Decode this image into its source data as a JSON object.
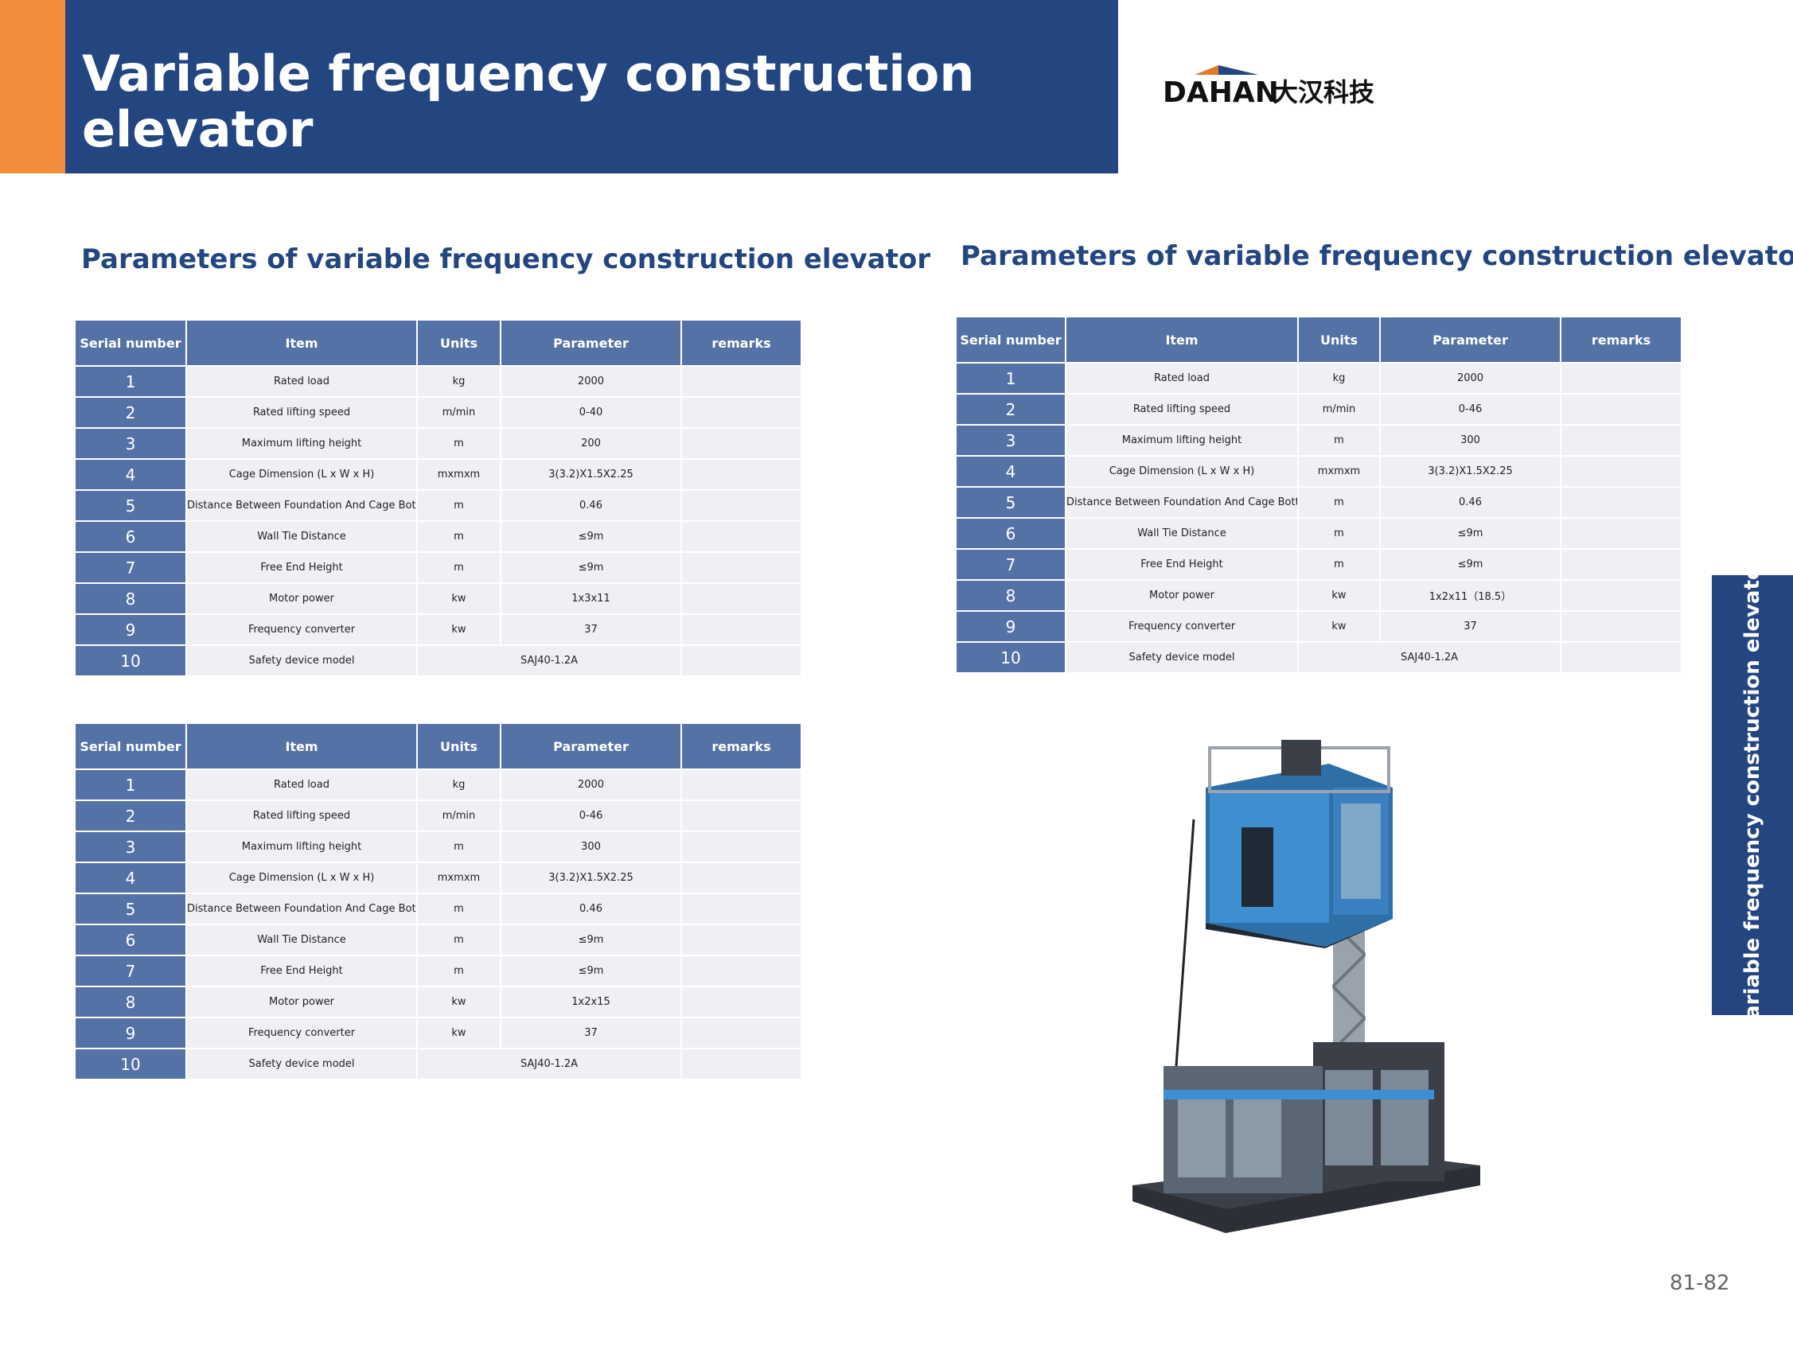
{
  "header": {
    "title": "Variable frequency construction elevator"
  },
  "logo": {
    "brand": "DAHAN",
    "chinese": "大汉科技"
  },
  "left": {
    "heading": "Parameters of variable frequency construction elevator",
    "tables": [
      {
        "columns": [
          "Serial number",
          "Item",
          "Units",
          "Parameter",
          "remarks"
        ],
        "rows": [
          {
            "no": "1",
            "item": "Rated load",
            "units": "kg",
            "parameter": "2000"
          },
          {
            "no": "2",
            "item": "Rated lifting speed",
            "units": "m/min",
            "parameter": "0-40"
          },
          {
            "no": "3",
            "item": "Maximum lifting height",
            "units": "m",
            "parameter": "200"
          },
          {
            "no": "4",
            "item": "Cage Dimension (L x W x H)",
            "units": "mxmxm",
            "parameter": "3(3.2)X1.5X2.25"
          },
          {
            "no": "5",
            "item": "Distance Between Foundation And Cage Bottom",
            "units": "m",
            "parameter": "0.46"
          },
          {
            "no": "6",
            "item": "Wall Tie Distance",
            "units": "m",
            "parameter": "≤9m"
          },
          {
            "no": "7",
            "item": "Free End Height",
            "units": "m",
            "parameter": "≤9m"
          },
          {
            "no": "8",
            "item": "Motor power",
            "units": "kw",
            "parameter": "1x3x11"
          },
          {
            "no": "9",
            "item": "Frequency converter",
            "units": "kw",
            "parameter": "37"
          },
          {
            "no": "10",
            "item": "Safety device model",
            "parameter": "SAJ40-1.2A"
          }
        ]
      },
      {
        "columns": [
          "Serial number",
          "Item",
          "Units",
          "Parameter",
          "remarks"
        ],
        "rows": [
          {
            "no": "1",
            "item": "Rated load",
            "units": "kg",
            "parameter": "2000"
          },
          {
            "no": "2",
            "item": "Rated lifting speed",
            "units": "m/min",
            "parameter": "0-46"
          },
          {
            "no": "3",
            "item": "Maximum lifting height",
            "units": "m",
            "parameter": "300"
          },
          {
            "no": "4",
            "item": "Cage Dimension (L x W x H)",
            "units": "mxmxm",
            "parameter": "3(3.2)X1.5X2.25"
          },
          {
            "no": "5",
            "item": "Distance Between Foundation And Cage Bottom",
            "units": "m",
            "parameter": "0.46"
          },
          {
            "no": "6",
            "item": "Wall Tie Distance",
            "units": "m",
            "parameter": "≤9m"
          },
          {
            "no": "7",
            "item": "Free End Height",
            "units": "m",
            "parameter": "≤9m"
          },
          {
            "no": "8",
            "item": "Motor power",
            "units": "kw",
            "parameter": "1x2x15"
          },
          {
            "no": "9",
            "item": "Frequency converter",
            "units": "kw",
            "parameter": "37"
          },
          {
            "no": "10",
            "item": "Safety device model",
            "parameter": "SAJ40-1.2A"
          }
        ]
      }
    ]
  },
  "right": {
    "heading": "Parameters of variable frequency construction elevator",
    "tables": [
      {
        "columns": [
          "Serial number",
          "Item",
          "Units",
          "Parameter",
          "remarks"
        ],
        "rows": [
          {
            "no": "1",
            "item": "Rated load",
            "units": "kg",
            "parameter": "2000"
          },
          {
            "no": "2",
            "item": "Rated lifting speed",
            "units": "m/min",
            "parameter": "0-46"
          },
          {
            "no": "3",
            "item": "Maximum lifting height",
            "units": "m",
            "parameter": "300"
          },
          {
            "no": "4",
            "item": "Cage Dimension (L x W x H)",
            "units": "mxmxm",
            "parameter": "3(3.2)X1.5X2.25"
          },
          {
            "no": "5",
            "item": "Distance Between Foundation And Cage Bottom",
            "units": "m",
            "parameter": "0.46"
          },
          {
            "no": "6",
            "item": "Wall Tie Distance",
            "units": "m",
            "parameter": "≤9m"
          },
          {
            "no": "7",
            "item": "Free End Height",
            "units": "m",
            "parameter": "≤9m"
          },
          {
            "no": "8",
            "item": "Motor power",
            "units": "kw",
            "parameter": "1x2x11（18.5）"
          },
          {
            "no": "9",
            "item": "Frequency converter",
            "units": "kw",
            "parameter": "37"
          },
          {
            "no": "10",
            "item": "Safety device model",
            "parameter": "SAJ40-1.2A"
          }
        ]
      }
    ]
  },
  "side_tab": {
    "text": "Variable frequency construction elevator"
  },
  "footer": {
    "page_number": "81-82"
  }
}
